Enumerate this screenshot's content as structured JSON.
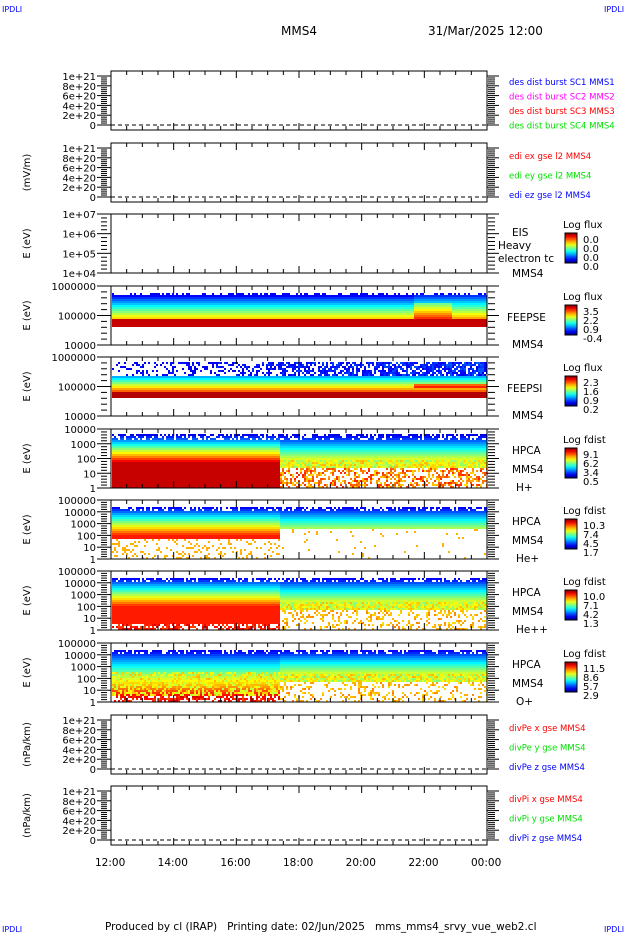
{
  "header": {
    "title": "MMS4",
    "datetime": "31/Mar/2025 12:00",
    "corner_label": "IPDLI"
  },
  "footer": {
    "text": "Produced by cl (IRAP)   Printing date: 02/Jun/2025   mms_mms4_srvy_vue_web2.cl"
  },
  "chart_data": {
    "type": "heatmap",
    "title": "MMS4",
    "x_tick_labels": [
      "12:00",
      "14:00",
      "16:00",
      "18:00",
      "20:00",
      "22:00",
      "00:00"
    ],
    "panels": [
      {
        "type": "line",
        "ylabel": "",
        "yticks": [
          "1e+21",
          "8e+20",
          "6e+20",
          "4e+20",
          "2e+20",
          "0"
        ],
        "legend": [
          {
            "text": "des dist burst SC1 MMS1",
            "color": "#0000ff"
          },
          {
            "text": "des dist burst SC2 MMS2",
            "color": "#ff00ff"
          },
          {
            "text": "des dist burst SC3 MMS3",
            "color": "#ff0000"
          },
          {
            "text": "des dist burst SC4 MMS4",
            "color": "#00e000"
          }
        ]
      },
      {
        "type": "line",
        "ylabel": "(mV/m)",
        "yticks": [
          "1e+21",
          "8e+20",
          "6e+20",
          "4e+20",
          "2e+20",
          "0"
        ],
        "legend": [
          {
            "text": "edi ex gse l2 MMS4",
            "color": "#ff0000"
          },
          {
            "text": "edi ey gse l2 MMS4",
            "color": "#00e000"
          },
          {
            "text": "edi ez gse l2 MMS4",
            "color": "#0000ff"
          }
        ]
      },
      {
        "type": "spectrogram",
        "ylabel": "E (eV)",
        "yticks": [
          "1e+07",
          "1e+06",
          "1e+05",
          "1e+04"
        ],
        "labels": [
          "EIS",
          "Heavy electron tc",
          "MMS4"
        ],
        "colorbar": {
          "title": "Log flux",
          "values": [
            "0.0",
            "0.0",
            "0.0",
            "0.0"
          ]
        }
      },
      {
        "type": "spectrogram",
        "ylabel": "E (eV)",
        "yticks": [
          "1000000",
          "100000",
          "10000"
        ],
        "labels": [
          "FEEPSE",
          "MMS4"
        ],
        "colorbar": {
          "title": "Log flux",
          "values": [
            "3.5",
            "2.2",
            "0.9",
            "-0.4"
          ]
        }
      },
      {
        "type": "spectrogram",
        "ylabel": "E (eV)",
        "yticks": [
          "1000000",
          "100000",
          "10000"
        ],
        "labels": [
          "FEEPSI",
          "MMS4"
        ],
        "colorbar": {
          "title": "Log flux",
          "values": [
            "2.3",
            "1.6",
            "0.9",
            "0.2"
          ]
        }
      },
      {
        "type": "spectrogram",
        "ylabel": "E (eV)",
        "yticks": [
          "10000",
          "1000",
          "100",
          "10",
          "1"
        ],
        "labels": [
          "HPCA",
          "MMS4",
          "H+"
        ],
        "colorbar": {
          "title": "Log fdist",
          "values": [
            "9.1",
            "6.2",
            "3.4",
            "0.5"
          ]
        }
      },
      {
        "type": "spectrogram",
        "ylabel": "E (eV)",
        "yticks": [
          "100000",
          "10000",
          "1000",
          "100",
          "10",
          "1"
        ],
        "labels": [
          "HPCA",
          "MMS4",
          "He+"
        ],
        "colorbar": {
          "title": "Log fdist",
          "values": [
            "10.3",
            "7.4",
            "4.5",
            "1.7"
          ]
        }
      },
      {
        "type": "spectrogram",
        "ylabel": "E (eV)",
        "yticks": [
          "100000",
          "10000",
          "1000",
          "100",
          "10",
          "1"
        ],
        "labels": [
          "HPCA",
          "MMS4",
          "He++"
        ],
        "colorbar": {
          "title": "Log fdist",
          "values": [
            "10.0",
            "7.1",
            "4.2",
            "1.3"
          ]
        }
      },
      {
        "type": "spectrogram",
        "ylabel": "E (eV)",
        "yticks": [
          "100000",
          "10000",
          "1000",
          "100",
          "10",
          "1"
        ],
        "labels": [
          "HPCA",
          "MMS4",
          "O+"
        ],
        "colorbar": {
          "title": "Log fdist",
          "values": [
            "11.5",
            "8.6",
            "5.7",
            "2.9"
          ]
        }
      },
      {
        "type": "line",
        "ylabel": "(nPa/km)",
        "yticks": [
          "1e+21",
          "8e+20",
          "6e+20",
          "4e+20",
          "2e+20",
          "0"
        ],
        "legend": [
          {
            "text": "divPe x gse MMS4",
            "color": "#ff0000"
          },
          {
            "text": "divPe y gse MMS4",
            "color": "#00e000"
          },
          {
            "text": "divPe z gse MMS4",
            "color": "#0000ff"
          }
        ]
      },
      {
        "type": "line",
        "ylabel": "(nPa/km)",
        "yticks": [
          "1e+21",
          "8e+20",
          "6e+20",
          "4e+20",
          "2e+20",
          "0"
        ],
        "legend": [
          {
            "text": "divPi x gse MMS4",
            "color": "#ff0000"
          },
          {
            "text": "divPi y gse MMS4",
            "color": "#00e000"
          },
          {
            "text": "divPi z gse MMS4",
            "color": "#0000ff"
          }
        ]
      }
    ]
  }
}
